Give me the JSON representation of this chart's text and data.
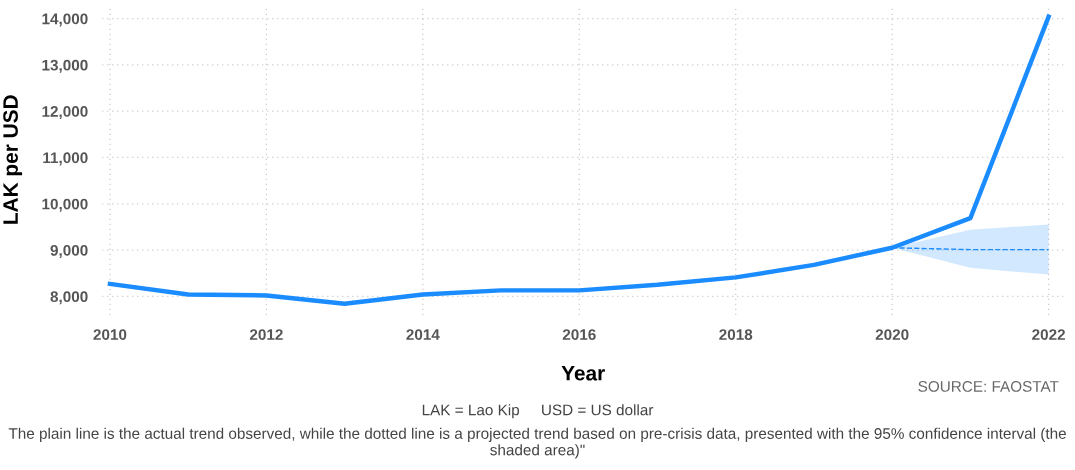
{
  "chart_data": {
    "type": "line",
    "xlabel": "Year",
    "ylabel": "LAK per USD",
    "xlim": [
      2009.9,
      2022.2
    ],
    "xticks": [
      2010,
      2012,
      2014,
      2016,
      2018,
      2020,
      2022
    ],
    "ylim": [
      7600,
      14300
    ],
    "yticks": [
      {
        "value": 8000,
        "label": "8,000"
      },
      {
        "value": 9000,
        "label": "9,000"
      },
      {
        "value": 10000,
        "label": "10,000"
      },
      {
        "value": 11000,
        "label": "11,000"
      },
      {
        "value": 12000,
        "label": "12,000"
      },
      {
        "value": 13000,
        "label": "13,000"
      },
      {
        "value": 14000,
        "label": "14,000"
      }
    ],
    "grid": true,
    "legend": false,
    "marker": "none",
    "series": [
      {
        "color": "#1a8cff",
        "line_style": "solid",
        "x": [
          2010,
          2011,
          2012,
          2013,
          2014,
          2015,
          2016,
          2017,
          2018,
          2019,
          2020,
          2021,
          2022
        ],
        "values": [
          8270,
          8040,
          8020,
          7840,
          8040,
          8130,
          8130,
          8250,
          8410,
          8680,
          9050,
          9690,
          14040
        ]
      },
      {
        "color": "#1a8cff",
        "line_style": "dashed",
        "x": [
          2020,
          2021,
          2022
        ],
        "values": [
          9050,
          9010,
          9010
        ],
        "lower": [
          9050,
          8620,
          8470
        ],
        "upper": [
          9050,
          9440,
          9550
        ]
      }
    ],
    "annotations": [
      "SOURCE: FAOSTAT",
      "LAK = Lao Kip     USD = US dollar",
      "The plain line is the actual trend observed, while the dotted line is a projected trend based on pre-crisis data, presented with the 95% confidence interval (the shaded area)\""
    ]
  }
}
